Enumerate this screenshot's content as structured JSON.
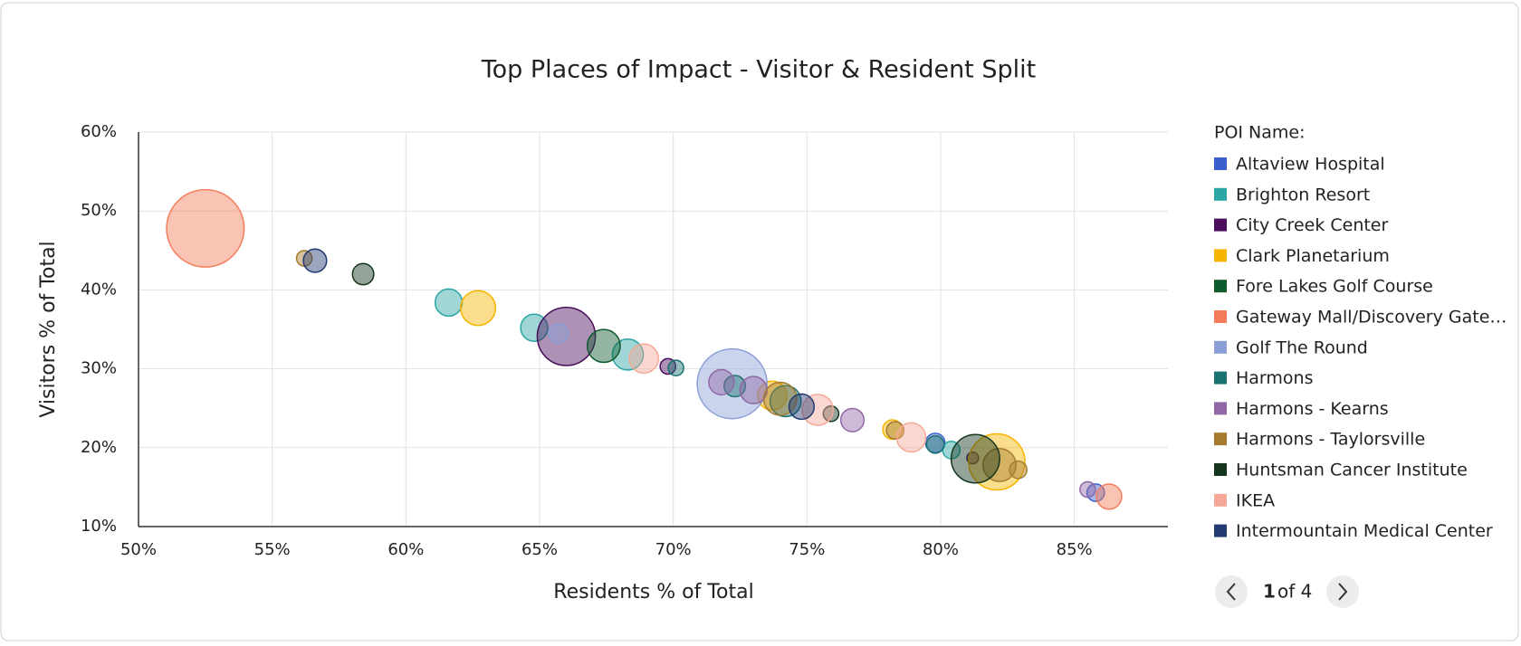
{
  "chart_data": {
    "type": "bubble",
    "title": "Top Places of Impact - Visitor & Resident Split",
    "x_label": "Residents % of Total",
    "y_label": "Visitors % of Total",
    "legend_title": "POI Name:",
    "xlim": [
      50,
      88.5
    ],
    "ylim": [
      10,
      60
    ],
    "xticks": [
      {
        "value": 50,
        "label": "50%"
      },
      {
        "value": 55,
        "label": "55%"
      },
      {
        "value": 60,
        "label": "60%"
      },
      {
        "value": 65,
        "label": "65%"
      },
      {
        "value": 70,
        "label": "70%"
      },
      {
        "value": 75,
        "label": "75%"
      },
      {
        "value": 80,
        "label": "80%"
      },
      {
        "value": 85,
        "label": "85%"
      }
    ],
    "yticks": [
      {
        "value": 10,
        "label": "10%"
      },
      {
        "value": 20,
        "label": "20%"
      },
      {
        "value": 30,
        "label": "30%"
      },
      {
        "value": 40,
        "label": "40%"
      },
      {
        "value": 50,
        "label": "50%"
      },
      {
        "value": 60,
        "label": "60%"
      }
    ],
    "grid": true,
    "series": [
      {
        "name": "Altaview Hospital",
        "color": "#3a5fcd",
        "x": [
          79.8,
          85.8
        ],
        "values": [
          20.6,
          14.3
        ],
        "sizes": [
          10,
          9
        ]
      },
      {
        "name": "Brighton Resort",
        "color": "#2ca6a4",
        "x": [
          61.6,
          64.8,
          68.3,
          80.4
        ],
        "values": [
          38.4,
          35.2,
          31.8,
          19.7
        ],
        "sizes": [
          14,
          14,
          16,
          9
        ]
      },
      {
        "name": "City Creek Center",
        "color": "#4a0e5c",
        "x": [
          66,
          69.8,
          81.2
        ],
        "values": [
          34.1,
          30.3,
          18.7
        ],
        "sizes": [
          30,
          8,
          6
        ]
      },
      {
        "name": "Clark Planetarium",
        "color": "#f7b500",
        "x": [
          62.7,
          73.7,
          78.2,
          82.1
        ],
        "values": [
          37.7,
          26.6,
          22.3,
          18.2
        ],
        "sizes": [
          18,
          15,
          10,
          29
        ]
      },
      {
        "name": "Fore Lakes Golf Course",
        "color": "#0f5a2e",
        "x": [
          67.4
        ],
        "values": [
          32.9
        ],
        "sizes": [
          17
        ]
      },
      {
        "name": "Gateway Mall/Discovery Gate…",
        "color": "#f47c5a",
        "x": [
          52.5,
          86.3
        ],
        "values": [
          47.8,
          13.8
        ],
        "sizes": [
          40,
          13
        ]
      },
      {
        "name": "Golf The Round",
        "color": "#8a9fd6",
        "x": [
          65.7,
          72.2
        ],
        "values": [
          34.5,
          28.1
        ],
        "sizes": [
          10,
          36
        ]
      },
      {
        "name": "Harmons",
        "color": "#1a7370",
        "x": [
          70.1,
          72.3,
          74.2,
          79.8
        ],
        "values": [
          30.1,
          27.8,
          25.9,
          20.4
        ],
        "sizes": [
          8,
          11,
          16,
          9
        ]
      },
      {
        "name": "Harmons - Kearns",
        "color": "#9068a6",
        "x": [
          71.8,
          73,
          76.7,
          85.5
        ],
        "values": [
          28.3,
          27.3,
          23.5,
          14.7
        ],
        "sizes": [
          13,
          14,
          12,
          8
        ]
      },
      {
        "name": "Harmons - Taylorsville",
        "color": "#a57c2f",
        "x": [
          56.2,
          74,
          78.3,
          82.2,
          82.9
        ],
        "values": [
          44,
          26.2,
          22.2,
          17.8,
          17.2
        ],
        "sizes": [
          8,
          17,
          9,
          17,
          9
        ]
      },
      {
        "name": "Huntsman Cancer Institute",
        "color": "#15351f",
        "x": [
          58.4,
          75.9,
          81.3
        ],
        "values": [
          42,
          24.3,
          18.6
        ],
        "sizes": [
          11,
          8,
          25
        ]
      },
      {
        "name": "IKEA",
        "color": "#f5a898",
        "x": [
          68.9,
          75.4,
          78.9
        ],
        "values": [
          31.3,
          24.8,
          21.3
        ],
        "sizes": [
          15,
          16,
          15
        ]
      },
      {
        "name": "Intermountain Medical Center",
        "color": "#233a70",
        "x": [
          56.6,
          74.8
        ],
        "values": [
          43.7,
          25.2
        ],
        "sizes": [
          12,
          13
        ]
      }
    ],
    "pagination": {
      "current": "1",
      "of": "of 4"
    }
  }
}
